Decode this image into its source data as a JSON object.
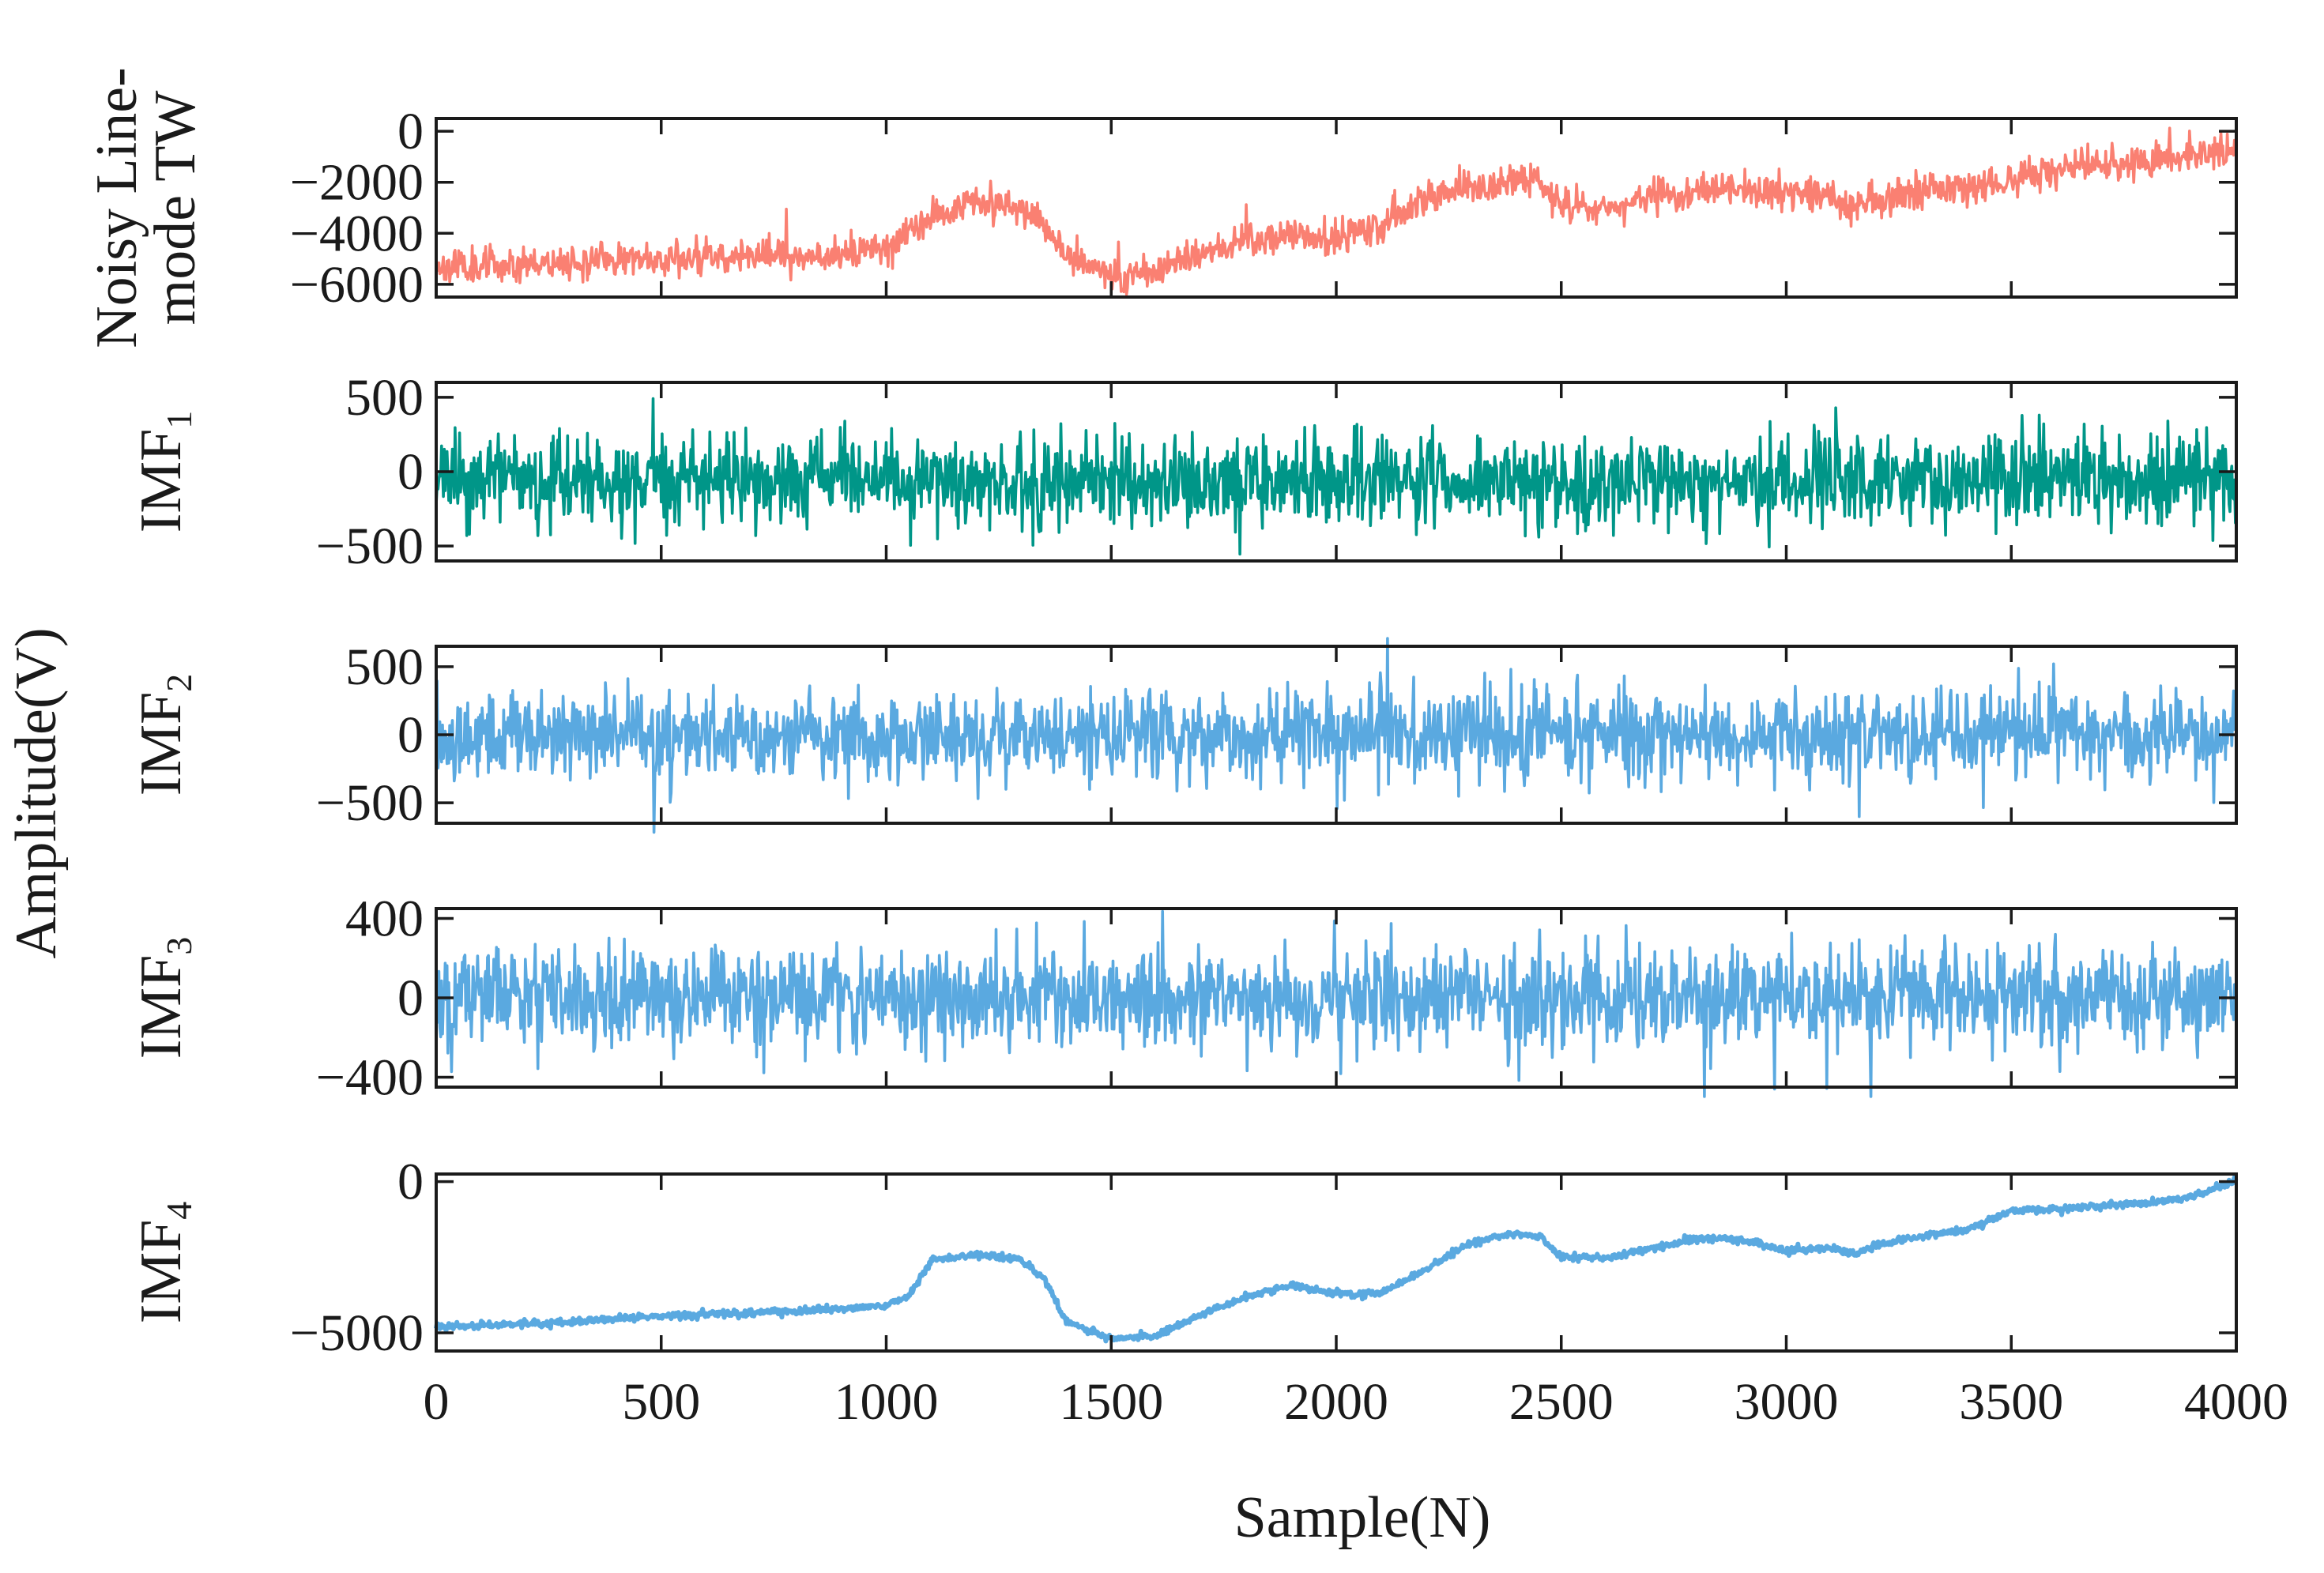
{
  "chart_data": {
    "type": "line",
    "layout": "stacked-subplots",
    "x": {
      "label": "Sample(N)",
      "range": [
        0,
        4000
      ],
      "ticks": [
        0,
        500,
        1000,
        1500,
        2000,
        2500,
        3000,
        3500,
        4000
      ]
    },
    "shared_ylabel": "Amplitude(V)",
    "panels": [
      {
        "name": "noisy",
        "label_lines": [
          "Noisy Line-",
          "mode TW"
        ],
        "label_base": "",
        "label_sub": "",
        "color": "#fa8072",
        "ylim": [
          -6500,
          500
        ],
        "yticks": [
          0,
          -2000,
          -4000,
          -6000
        ],
        "ytick_labels": [
          "0",
          "−2000",
          "−4000",
          "−6000"
        ],
        "trend": [
          [
            0,
            -5300
          ],
          [
            300,
            -5100
          ],
          [
            600,
            -4900
          ],
          [
            900,
            -4800
          ],
          [
            1000,
            -4600
          ],
          [
            1100,
            -3300
          ],
          [
            1200,
            -2700
          ],
          [
            1300,
            -2900
          ],
          [
            1400,
            -4800
          ],
          [
            1500,
            -5700
          ],
          [
            1600,
            -5500
          ],
          [
            1700,
            -4700
          ],
          [
            1800,
            -4400
          ],
          [
            1900,
            -4100
          ],
          [
            2000,
            -4200
          ],
          [
            2100,
            -3800
          ],
          [
            2200,
            -2700
          ],
          [
            2300,
            -2300
          ],
          [
            2400,
            -1900
          ],
          [
            2450,
            -2000
          ],
          [
            2500,
            -2900
          ],
          [
            2600,
            -3000
          ],
          [
            2700,
            -2600
          ],
          [
            2800,
            -2300
          ],
          [
            2900,
            -2300
          ],
          [
            3000,
            -2500
          ],
          [
            3100,
            -2500
          ],
          [
            3150,
            -3000
          ],
          [
            3200,
            -2700
          ],
          [
            3300,
            -2400
          ],
          [
            3400,
            -2200
          ],
          [
            3500,
            -1900
          ],
          [
            3700,
            -1300
          ],
          [
            3900,
            -900
          ],
          [
            4000,
            -600
          ]
        ],
        "noise_std": 330,
        "seed": 11
      },
      {
        "name": "imf1",
        "label_lines": [],
        "label_base": "IMF",
        "label_sub": "1",
        "color": "#009688",
        "ylim": [
          -600,
          600
        ],
        "yticks": [
          500,
          0,
          -500
        ],
        "ytick_labels": [
          "500",
          "0",
          "−500"
        ],
        "trend": [
          [
            0,
            -60
          ],
          [
            4000,
            -60
          ]
        ],
        "noise_std": 145,
        "seed": 23
      },
      {
        "name": "imf2",
        "label_lines": [],
        "label_base": "IMF",
        "label_sub": "2",
        "color": "#5aa9e0",
        "ylim": [
          -650,
          650
        ],
        "yticks": [
          500,
          0,
          -500
        ],
        "ytick_labels": [
          "500",
          "0",
          "−500"
        ],
        "trend": [
          [
            0,
            0
          ],
          [
            4000,
            0
          ]
        ],
        "noise_std": 160,
        "seed": 37
      },
      {
        "name": "imf3",
        "label_lines": [],
        "label_base": "IMF",
        "label_sub": "3",
        "color": "#5aa9e0",
        "ylim": [
          -450,
          450
        ],
        "yticks": [
          400,
          0,
          -400
        ],
        "ytick_labels": [
          "400",
          "0",
          "−400"
        ],
        "trend": [
          [
            0,
            0
          ],
          [
            4000,
            0
          ]
        ],
        "noise_std": 125,
        "seed": 51
      },
      {
        "name": "imf4",
        "label_lines": [],
        "label_base": "IMF",
        "label_sub": "4",
        "color": "#5aa9e0",
        "ylim": [
          -5600,
          250
        ],
        "yticks": [
          0,
          -5000
        ],
        "ytick_labels": [
          "0",
          "−5000"
        ],
        "trend": [
          [
            0,
            -4800
          ],
          [
            100,
            -4750
          ],
          [
            300,
            -4650
          ],
          [
            500,
            -4450
          ],
          [
            700,
            -4350
          ],
          [
            900,
            -4200
          ],
          [
            1000,
            -4100
          ],
          [
            1050,
            -3800
          ],
          [
            1100,
            -2600
          ],
          [
            1200,
            -2400
          ],
          [
            1300,
            -2600
          ],
          [
            1350,
            -3200
          ],
          [
            1400,
            -4600
          ],
          [
            1500,
            -5200
          ],
          [
            1600,
            -5100
          ],
          [
            1700,
            -4400
          ],
          [
            1800,
            -3800
          ],
          [
            1900,
            -3400
          ],
          [
            2000,
            -3700
          ],
          [
            2100,
            -3700
          ],
          [
            2200,
            -2900
          ],
          [
            2300,
            -2000
          ],
          [
            2400,
            -1700
          ],
          [
            2450,
            -1800
          ],
          [
            2500,
            -2500
          ],
          [
            2600,
            -2500
          ],
          [
            2700,
            -2200
          ],
          [
            2800,
            -1900
          ],
          [
            2900,
            -1900
          ],
          [
            3000,
            -2300
          ],
          [
            3100,
            -2200
          ],
          [
            3150,
            -2400
          ],
          [
            3200,
            -2100
          ],
          [
            3300,
            -1800
          ],
          [
            3400,
            -1600
          ],
          [
            3500,
            -1000
          ],
          [
            3700,
            -800
          ],
          [
            3800,
            -700
          ],
          [
            3900,
            -500
          ],
          [
            4000,
            0
          ]
        ],
        "noise_std": 55,
        "seed": 67
      }
    ]
  }
}
